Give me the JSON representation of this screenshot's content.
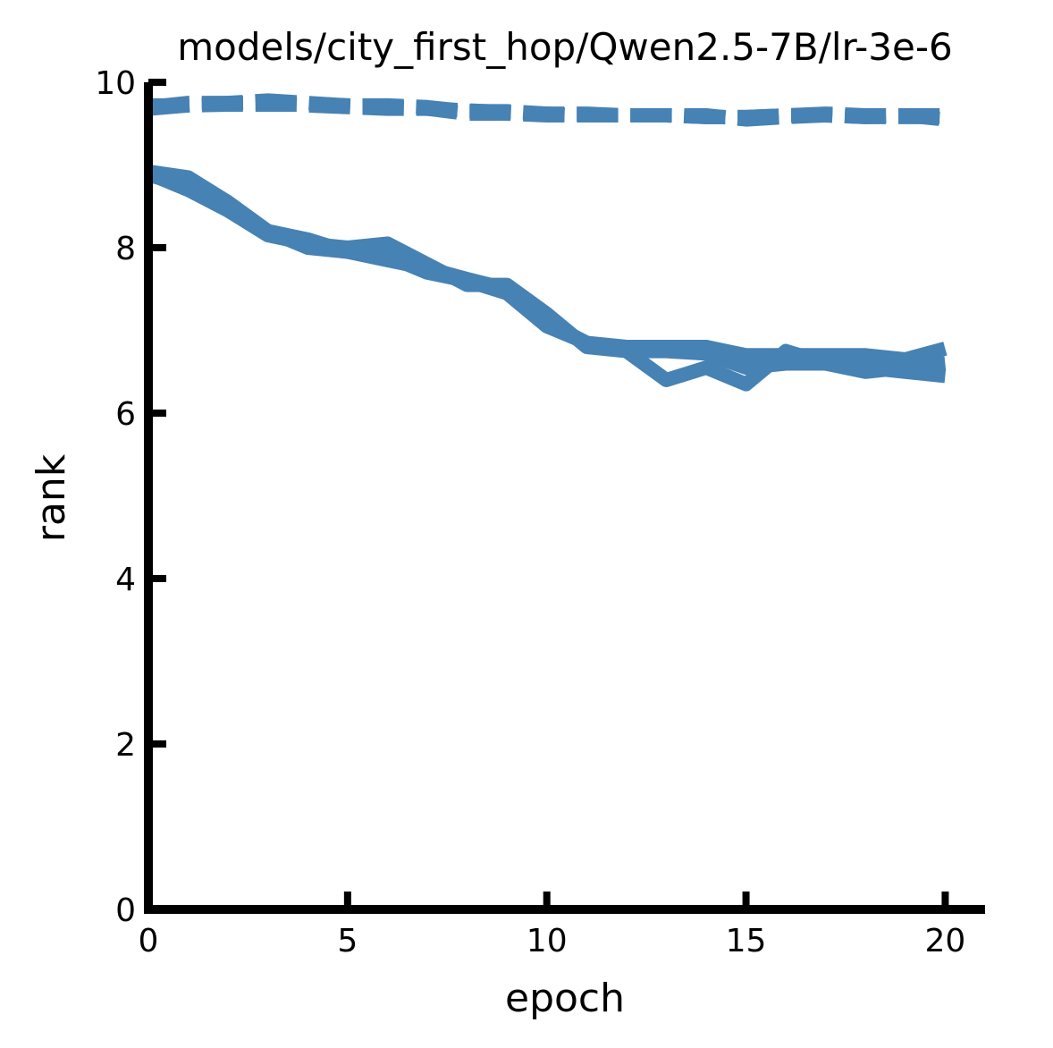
{
  "chart_data": {
    "type": "line",
    "title": "models/city_first_hop/Qwen2.5-7B/lr-3e-6",
    "xlabel": "epoch",
    "ylabel": "rank",
    "xlim": [
      0,
      21
    ],
    "ylim": [
      0,
      10
    ],
    "xticks": [
      0,
      5,
      10,
      15,
      20
    ],
    "yticks": [
      0,
      2,
      4,
      6,
      8,
      10
    ],
    "grid": false,
    "legend": "none",
    "color": "#4682b4",
    "x": [
      0,
      1,
      2,
      3,
      4,
      5,
      6,
      7,
      8,
      9,
      10,
      11,
      12,
      13,
      14,
      15,
      16,
      17,
      18,
      19,
      20
    ],
    "series": [
      {
        "style": "solid",
        "values": [
          8.92,
          8.85,
          8.55,
          8.2,
          8.1,
          7.95,
          7.85,
          7.75,
          7.62,
          7.5,
          7.1,
          6.85,
          6.75,
          6.75,
          6.72,
          6.55,
          6.6,
          6.6,
          6.55,
          6.5,
          6.45
        ]
      },
      {
        "style": "solid",
        "values": [
          8.9,
          8.7,
          8.45,
          8.15,
          8.05,
          8.0,
          8.05,
          7.8,
          7.55,
          7.55,
          7.2,
          6.8,
          6.75,
          6.4,
          6.55,
          6.35,
          6.75,
          6.6,
          6.5,
          6.55,
          6.6
        ]
      },
      {
        "style": "solid",
        "values": [
          8.88,
          8.75,
          8.5,
          8.2,
          8.0,
          7.95,
          7.9,
          7.7,
          7.6,
          7.45,
          7.05,
          6.85,
          6.8,
          6.8,
          6.8,
          6.7,
          6.7,
          6.7,
          6.7,
          6.65,
          6.78
        ]
      },
      {
        "style": "dashed",
        "values": [
          9.7,
          9.75,
          9.75,
          9.78,
          9.75,
          9.72,
          9.72,
          9.7,
          9.65,
          9.65,
          9.62,
          9.62,
          9.6,
          9.6,
          9.58,
          9.58,
          9.6,
          9.6,
          9.58,
          9.58,
          9.58
        ]
      },
      {
        "style": "dashed",
        "values": [
          9.72,
          9.72,
          9.75,
          9.75,
          9.72,
          9.7,
          9.68,
          9.68,
          9.62,
          9.62,
          9.6,
          9.6,
          9.6,
          9.6,
          9.58,
          9.58,
          9.6,
          9.62,
          9.6,
          9.6,
          9.6
        ]
      },
      {
        "style": "dashed",
        "values": [
          9.68,
          9.72,
          9.73,
          9.73,
          9.73,
          9.72,
          9.7,
          9.68,
          9.66,
          9.64,
          9.62,
          9.6,
          9.6,
          9.6,
          9.6,
          9.55,
          9.58,
          9.6,
          9.58,
          9.6,
          9.55
        ]
      }
    ]
  }
}
